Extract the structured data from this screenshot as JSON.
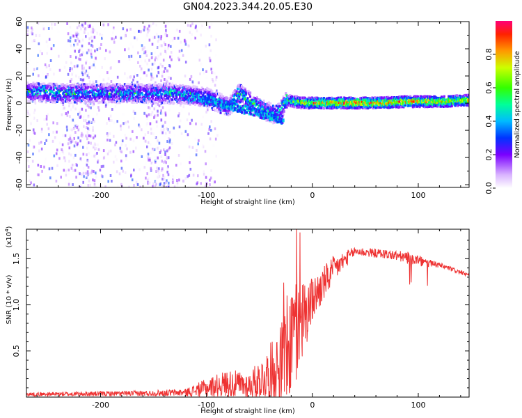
{
  "title": "GN04.2023.344.20.05.E30",
  "chart_data": [
    {
      "type": "heatmap",
      "name": "spectrogram",
      "xlabel": "Height of straight line (km)",
      "ylabel": "Frequency (Hz)",
      "xlim": [
        -270,
        148
      ],
      "ylim": [
        -62,
        60
      ],
      "xticks": [
        -200,
        -100,
        0,
        100
      ],
      "xtick_labels": [
        "-200",
        "-100",
        "0",
        "100"
      ],
      "yticks": [
        60,
        40,
        20,
        0,
        -20,
        -40,
        -60
      ],
      "ytick_labels": [
        "60",
        "40",
        "20",
        "0",
        "-20",
        "-40",
        "-60"
      ],
      "colorbar": {
        "label": "Normalized spectral amplitude",
        "range": [
          0,
          1
        ],
        "ticks": [
          0.0,
          0.2,
          0.4,
          0.6,
          0.8
        ],
        "tick_labels": [
          "0.0",
          "0.2",
          "0.4",
          "0.6",
          "0.8"
        ]
      },
      "ridge": [
        {
          "x": -265,
          "f": 9,
          "amp": 0.4
        },
        {
          "x": -240,
          "f": 8,
          "amp": 0.45
        },
        {
          "x": -200,
          "f": 8,
          "amp": 0.4
        },
        {
          "x": -150,
          "f": 8,
          "amp": 0.4
        },
        {
          "x": -120,
          "f": 7,
          "amp": 0.45
        },
        {
          "x": -100,
          "f": 5,
          "amp": 0.45
        },
        {
          "x": -80,
          "f": -2,
          "amp": 0.4
        },
        {
          "x": -70,
          "f": 8,
          "amp": 0.5
        },
        {
          "x": -50,
          "f": -3,
          "amp": 0.45
        },
        {
          "x": -35,
          "f": -8,
          "amp": 0.4
        },
        {
          "x": -25,
          "f": 3,
          "amp": 0.55
        },
        {
          "x": -10,
          "f": 1,
          "amp": 0.75
        },
        {
          "x": 20,
          "f": 1,
          "amp": 0.9
        },
        {
          "x": 60,
          "f": 1,
          "amp": 0.95
        },
        {
          "x": 90,
          "f": 2,
          "amp": 0.9
        },
        {
          "x": 120,
          "f": 2,
          "amp": 0.85
        },
        {
          "x": 148,
          "f": 3,
          "amp": 0.8
        }
      ]
    },
    {
      "type": "line",
      "name": "snr",
      "xlabel": "Height of straight line (km)",
      "ylabel": "SNR (10 * v/v)",
      "yscale_label": "(x10",
      "yscale_exp": "4",
      "xlim": [
        -270,
        148
      ],
      "ylim": [
        0,
        1.82
      ],
      "xticks": [
        -200,
        -100,
        0,
        100
      ],
      "xtick_labels": [
        "-200",
        "-100",
        "0",
        "100"
      ],
      "yticks": [
        0.5,
        1.0,
        1.5
      ],
      "ytick_labels": [
        "0.5",
        "1.0",
        "1.5"
      ],
      "color": "#ee3333",
      "envelope": [
        {
          "x": -270,
          "y": 0.03,
          "noise": 0.02
        },
        {
          "x": -160,
          "y": 0.04,
          "noise": 0.03
        },
        {
          "x": -120,
          "y": 0.05,
          "noise": 0.04
        },
        {
          "x": -100,
          "y": 0.1,
          "noise": 0.1
        },
        {
          "x": -80,
          "y": 0.15,
          "noise": 0.15
        },
        {
          "x": -60,
          "y": 0.12,
          "noise": 0.15
        },
        {
          "x": -45,
          "y": 0.22,
          "noise": 0.25
        },
        {
          "x": -30,
          "y": 0.35,
          "noise": 0.45
        },
        {
          "x": -20,
          "y": 0.6,
          "noise": 0.7
        },
        {
          "x": -10,
          "y": 0.85,
          "noise": 0.45
        },
        {
          "x": 0,
          "y": 1.05,
          "noise": 0.25
        },
        {
          "x": 20,
          "y": 1.38,
          "noise": 0.15
        },
        {
          "x": 40,
          "y": 1.58,
          "noise": 0.05
        },
        {
          "x": 70,
          "y": 1.55,
          "noise": 0.05
        },
        {
          "x": 95,
          "y": 1.5,
          "noise": 0.07
        },
        {
          "x": 105,
          "y": 1.46,
          "noise": 0.05
        },
        {
          "x": 120,
          "y": 1.43,
          "noise": 0.03
        },
        {
          "x": 148,
          "y": 1.32,
          "noise": 0.02
        }
      ]
    }
  ]
}
